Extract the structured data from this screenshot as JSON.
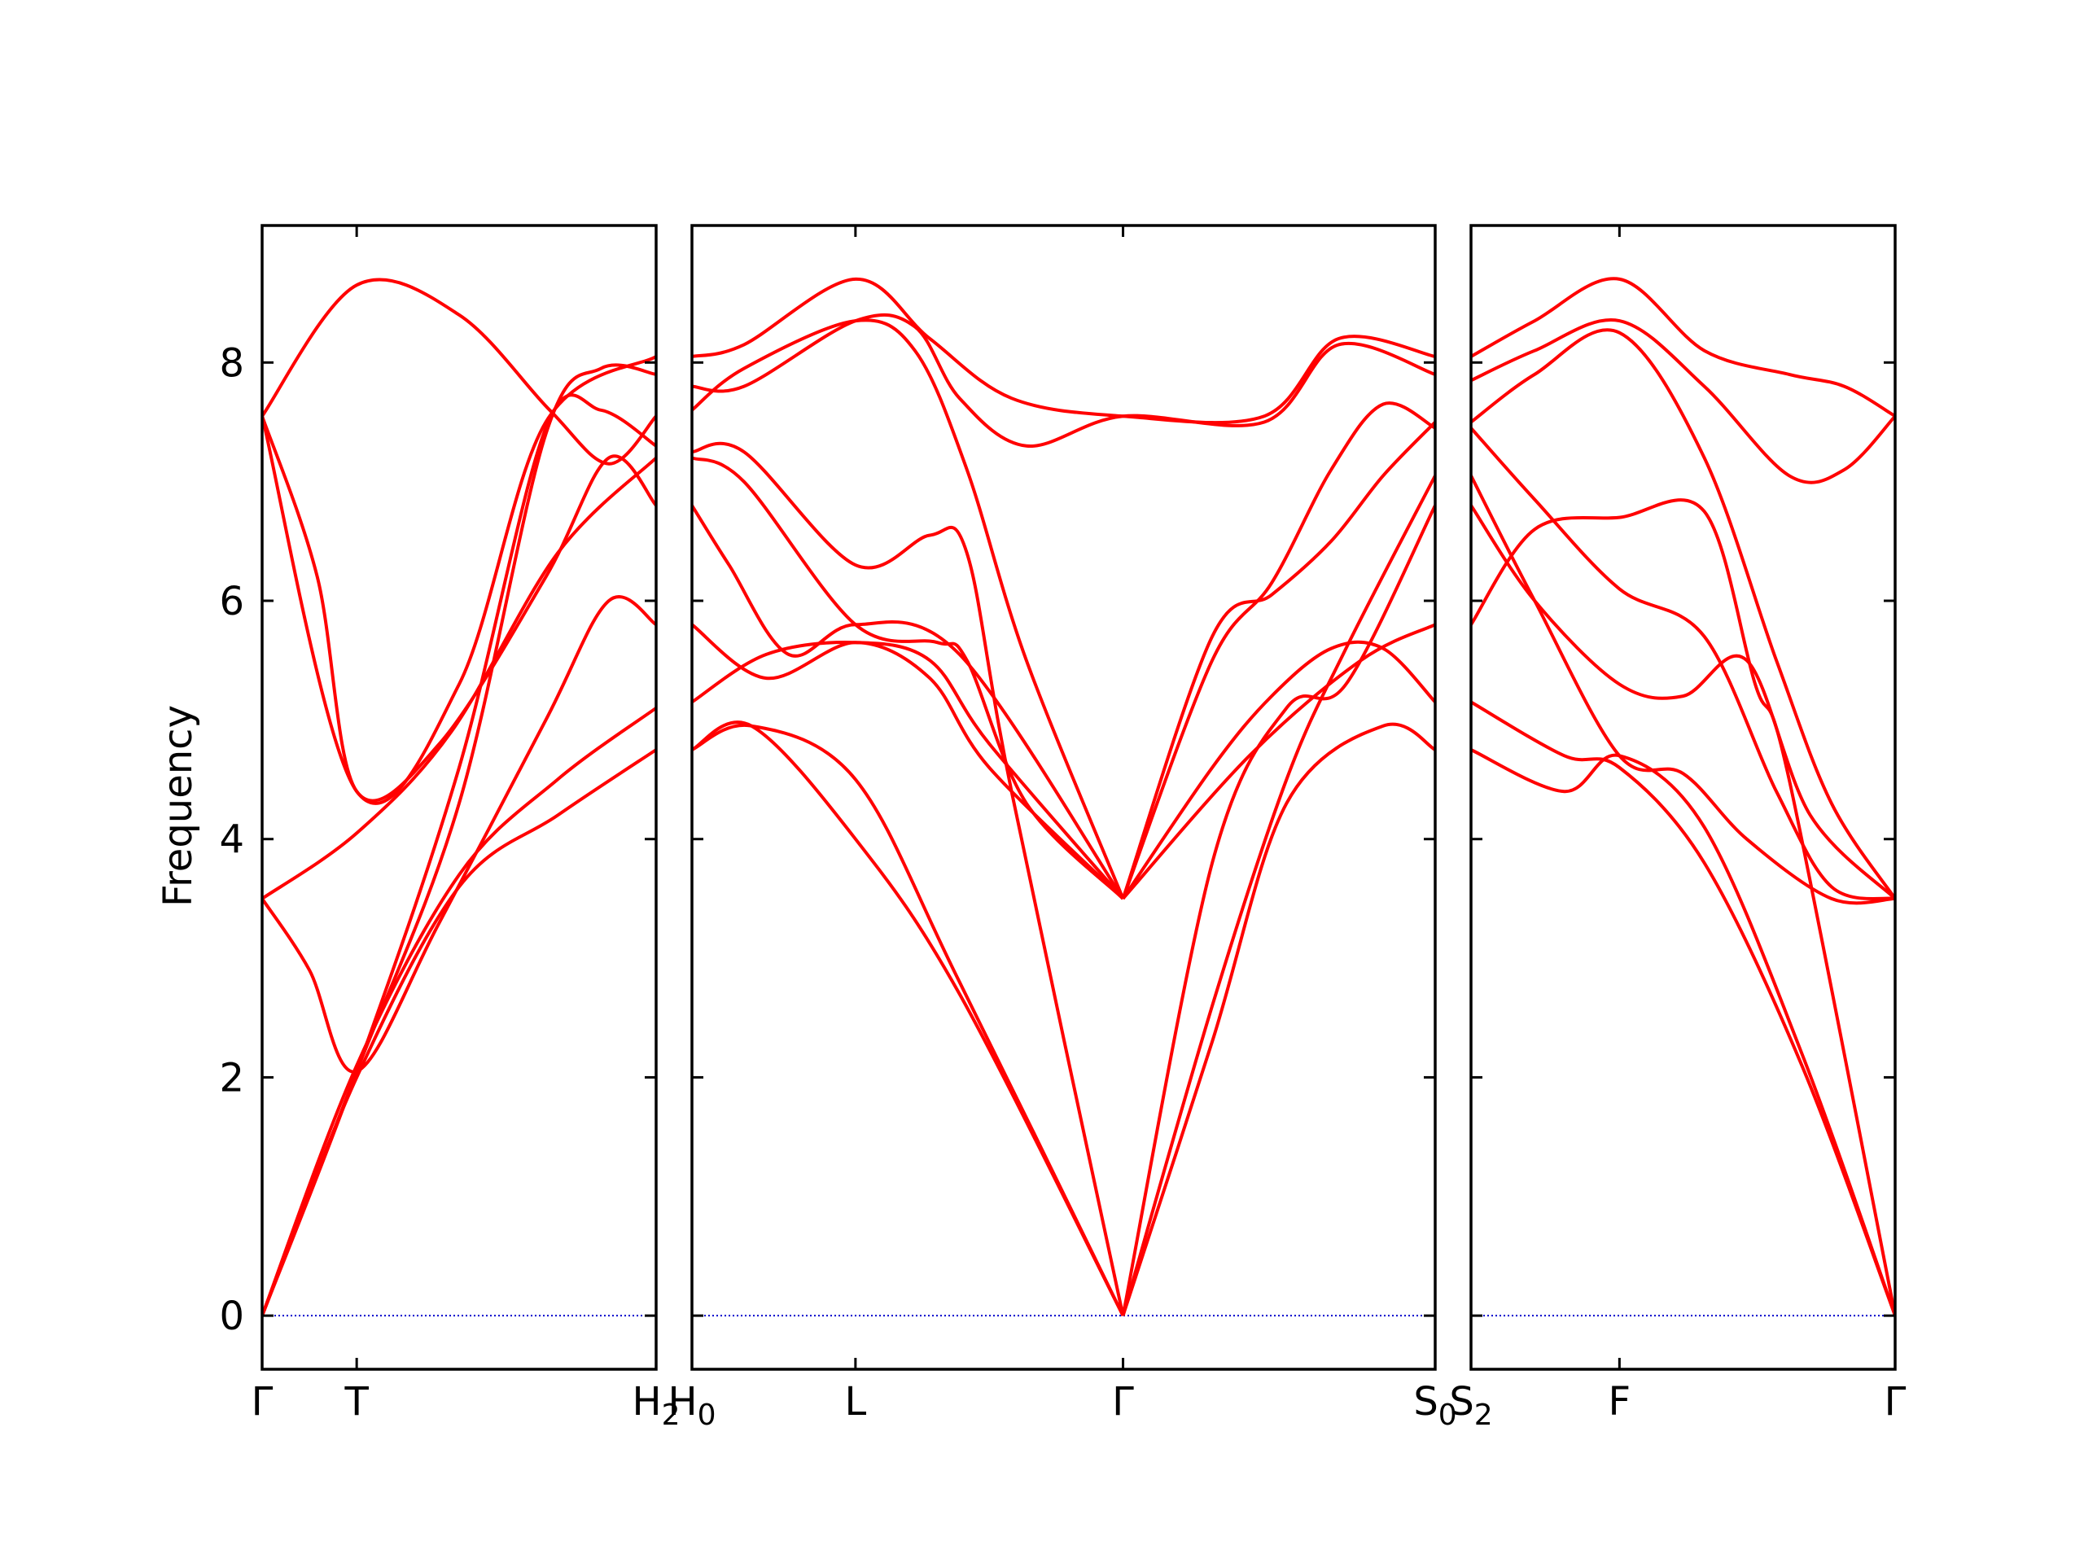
{
  "chart_data": {
    "type": "line",
    "ylabel": "Frequency",
    "ylim": [
      -0.45,
      9.15
    ],
    "yticks": [
      0,
      2,
      4,
      6,
      8
    ],
    "line_color": "#ff0000",
    "zero_line_color": "#0000cc",
    "panels": [
      {
        "xlim": [
          0,
          1
        ],
        "xticks": [
          {
            "x": 0,
            "label": "Γ"
          },
          {
            "x": 0.24,
            "label": "T"
          },
          {
            "x": 1,
            "label": "H",
            "sub": "2"
          }
        ],
        "series": [
          {
            "x": [
              0,
              0.24,
              0.5,
              0.72,
              0.86,
              1
            ],
            "y": [
              0,
              2.05,
              4.3,
              7.4,
              7.95,
              7.9
            ]
          },
          {
            "x": [
              0,
              0.24,
              0.5,
              0.72,
              0.86,
              1
            ],
            "y": [
              0,
              2.05,
              4.6,
              7.45,
              7.6,
              7.3
            ]
          },
          {
            "x": [
              0,
              0.12,
              0.24,
              0.45,
              0.72,
              0.88,
              1
            ],
            "y": [
              3.5,
              2.9,
              2.05,
              3.3,
              5.0,
              6.0,
              5.8
            ]
          },
          {
            "x": [
              0,
              0.24,
              0.5,
              0.75,
              1
            ],
            "y": [
              0,
              2.0,
              3.6,
              4.2,
              4.75
            ]
          },
          {
            "x": [
              0,
              0.24,
              0.48,
              0.75,
              1
            ],
            "y": [
              3.5,
              4.05,
              4.9,
              6.4,
              7.2
            ]
          },
          {
            "x": [
              0,
              0.24,
              0.5,
              0.72,
              1
            ],
            "y": [
              7.55,
              4.4,
              5.3,
              7.5,
              8.05
            ]
          },
          {
            "x": [
              0,
              0.14,
              0.24,
              0.45,
              0.72,
              0.88,
              1
            ],
            "y": [
              7.55,
              6.2,
              4.4,
              4.8,
              6.2,
              7.2,
              6.8
            ]
          },
          {
            "x": [
              0,
              0.24,
              0.5,
              0.73,
              0.88,
              1
            ],
            "y": [
              7.55,
              8.65,
              8.4,
              7.6,
              7.15,
              7.55
            ]
          },
          {
            "x": [
              0,
              0.24,
              0.5,
              0.75,
              1
            ],
            "y": [
              0,
              2.1,
              3.7,
              4.5,
              5.1
            ]
          }
        ]
      },
      {
        "xlim": [
          0,
          1
        ],
        "xticks": [
          {
            "x": 0,
            "label": "H",
            "sub": "0"
          },
          {
            "x": 0.22,
            "label": "L"
          },
          {
            "x": 0.58,
            "label": "Γ"
          },
          {
            "x": 1,
            "label": "S",
            "sub": "0"
          }
        ],
        "series": [
          {
            "x": [
              0,
              0.08,
              0.22,
              0.36,
              0.58
            ],
            "y": [
              4.75,
              4.95,
              4.0,
              2.7,
              0
            ]
          },
          {
            "x": [
              0,
              0.08,
              0.22,
              0.36,
              0.58
            ],
            "y": [
              4.75,
              4.95,
              4.5,
              2.8,
              0
            ]
          },
          {
            "x": [
              0,
              0.1,
              0.22,
              0.32,
              0.4,
              0.58
            ],
            "y": [
              5.15,
              5.55,
              5.65,
              5.5,
              4.8,
              3.5
            ]
          },
          {
            "x": [
              0,
              0.1,
              0.22,
              0.32,
              0.4,
              0.58
            ],
            "y": [
              5.8,
              5.35,
              5.65,
              5.35,
              4.6,
              3.5
            ]
          },
          {
            "x": [
              0,
              0.05,
              0.13,
              0.22,
              0.36,
              0.58
            ],
            "y": [
              6.8,
              6.3,
              5.55,
              5.8,
              5.55,
              3.5
            ]
          },
          {
            "x": [
              0,
              0.07,
              0.22,
              0.33,
              0.37,
              0.45,
              0.58
            ],
            "y": [
              7.2,
              7.0,
              5.8,
              5.65,
              5.5,
              4.3,
              3.5
            ]
          },
          {
            "x": [
              0,
              0.07,
              0.22,
              0.32,
              0.37,
              0.43,
              0.58
            ],
            "y": [
              7.25,
              7.25,
              6.3,
              6.55,
              6.4,
              4.4,
              0
            ]
          },
          {
            "x": [
              0,
              0.07,
              0.22,
              0.32,
              0.43,
              0.58,
              0.77,
              0.87,
              1
            ],
            "y": [
              8.05,
              8.15,
              8.7,
              8.2,
              7.7,
              7.55,
              7.55,
              8.2,
              8.05
            ]
          },
          {
            "x": [
              0,
              0.07,
              0.22,
              0.3,
              0.37,
              0.45,
              0.58
            ],
            "y": [
              7.6,
              7.95,
              8.35,
              8.1,
              7.1,
              5.5,
              3.5
            ]
          },
          {
            "x": [
              0,
              0.07,
              0.22,
              0.3,
              0.36,
              0.45,
              0.58,
              0.77,
              0.87,
              1
            ],
            "y": [
              7.8,
              7.8,
              8.35,
              8.3,
              7.7,
              7.3,
              7.55,
              7.5,
              8.15,
              7.9
            ]
          },
          {
            "x": [
              0.58,
              0.7,
              0.78,
              0.86,
              0.93,
              1
            ],
            "y": [
              3.5,
              5.5,
              6.15,
              7.1,
              7.65,
              7.45
            ]
          },
          {
            "x": [
              0.58,
              0.7,
              0.78,
              0.86,
              0.93,
              1
            ],
            "y": [
              3.5,
              5.7,
              6.05,
              6.5,
              7.05,
              7.5
            ]
          },
          {
            "x": [
              0.58,
              0.7,
              0.78,
              0.86,
              0.93,
              1
            ],
            "y": [
              3.5,
              4.6,
              5.2,
              5.6,
              5.6,
              5.15
            ]
          },
          {
            "x": [
              0.58,
              0.7,
              0.8,
              0.88,
              1
            ],
            "y": [
              0,
              3.8,
              5.1,
              5.3,
              6.8
            ]
          },
          {
            "x": [
              0.58,
              0.7,
              0.8,
              0.88,
              1
            ],
            "y": [
              0,
              2.6,
              4.5,
              5.6,
              7.05
            ]
          },
          {
            "x": [
              0.58,
              0.7,
              0.8,
              0.93,
              1
            ],
            "y": [
              0,
              2.3,
              4.3,
              4.95,
              4.75
            ]
          },
          {
            "x": [
              0.58,
              0.75,
              0.9,
              1
            ],
            "y": [
              3.5,
              4.7,
              5.5,
              5.8
            ]
          }
        ]
      },
      {
        "xlim": [
          0,
          1
        ],
        "xticks": [
          {
            "x": 0,
            "label": "S",
            "sub": "2"
          },
          {
            "x": 0.35,
            "label": "F"
          },
          {
            "x": 1,
            "label": "Γ"
          }
        ],
        "series": [
          {
            "x": [
              0,
              0.22,
              0.35,
              0.55,
              0.78,
              1
            ],
            "y": [
              4.75,
              4.4,
              4.7,
              4.1,
              2.2,
              0
            ]
          },
          {
            "x": [
              0,
              0.22,
              0.35,
              0.55,
              0.78,
              1
            ],
            "y": [
              5.15,
              4.7,
              4.6,
              3.8,
              2.1,
              0
            ]
          },
          {
            "x": [
              0,
              0.15,
              0.35,
              0.5,
              0.65,
              0.85,
              1
            ],
            "y": [
              7.05,
              6.0,
              4.7,
              4.55,
              4.0,
              3.5,
              3.5
            ]
          },
          {
            "x": [
              0,
              0.15,
              0.35,
              0.5,
              0.65,
              0.8,
              1
            ],
            "y": [
              6.8,
              6.0,
              5.3,
              5.2,
              5.5,
              4.2,
              3.5
            ]
          },
          {
            "x": [
              0,
              0.15,
              0.35,
              0.55,
              0.72,
              0.85,
              1
            ],
            "y": [
              7.45,
              6.85,
              6.1,
              5.7,
              4.4,
              3.6,
              3.5
            ]
          },
          {
            "x": [
              0,
              0.15,
              0.35,
              0.55,
              0.67,
              0.75,
              1
            ],
            "y": [
              5.8,
              6.6,
              6.7,
              6.75,
              5.3,
              4.5,
              0
            ]
          },
          {
            "x": [
              0,
              0.15,
              0.35,
              0.55,
              0.72,
              0.85,
              1
            ],
            "y": [
              7.5,
              7.9,
              8.25,
              7.2,
              5.5,
              4.3,
              3.5
            ]
          },
          {
            "x": [
              0,
              0.15,
              0.35,
              0.55,
              0.75,
              0.88,
              1
            ],
            "y": [
              7.85,
              8.1,
              8.35,
              7.8,
              7.05,
              7.1,
              7.55
            ]
          },
          {
            "x": [
              0,
              0.15,
              0.35,
              0.55,
              0.75,
              0.88,
              1
            ],
            "y": [
              8.05,
              8.35,
              8.7,
              8.1,
              7.9,
              7.8,
              7.55
            ]
          }
        ]
      }
    ]
  }
}
